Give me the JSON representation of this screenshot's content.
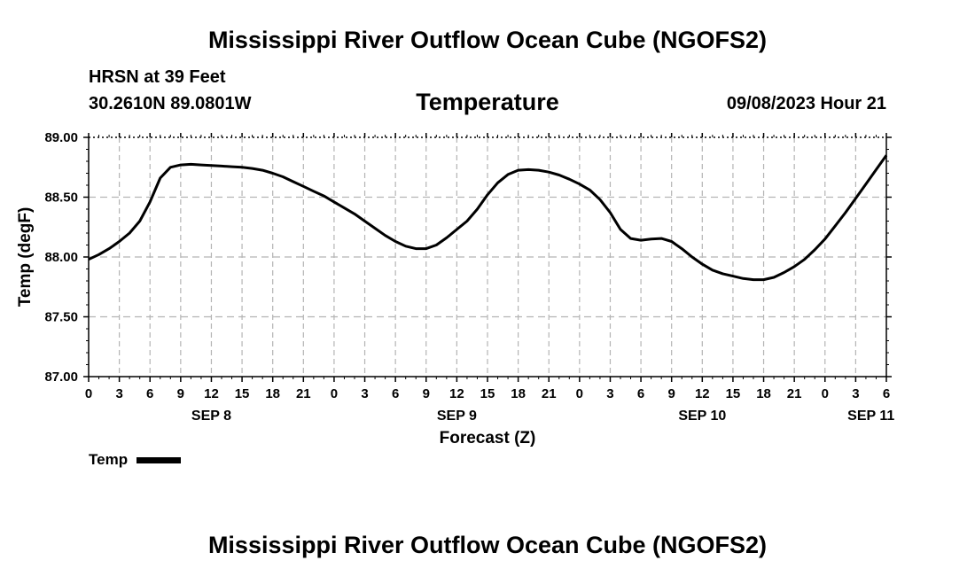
{
  "header": {
    "main_title": "Mississippi River Outflow Ocean Cube (NGOFS2)",
    "station": "HRSN at 39 Feet",
    "coords": "30.2610N  89.0801W",
    "chart_title": "Temperature",
    "timestamp": "09/08/2023 Hour 21",
    "footer_title": "Mississippi River Outflow Ocean Cube (NGOFS2)"
  },
  "chart_data": {
    "type": "line",
    "title": "Temperature",
    "xlabel": "Forecast (Z)",
    "ylabel": "Temp (degF)",
    "xlim": [
      0,
      78
    ],
    "ylim": [
      87.0,
      89.0
    ],
    "yticks": [
      "87.00",
      "87.50",
      "88.00",
      "88.50",
      "89.00"
    ],
    "xticks": [
      "0",
      "3",
      "6",
      "9",
      "12",
      "15",
      "18",
      "21",
      "0",
      "3",
      "6",
      "9",
      "12",
      "15",
      "18",
      "21",
      "0",
      "3",
      "6",
      "9",
      "12",
      "15",
      "18",
      "21",
      "0",
      "3",
      "6"
    ],
    "day_labels": [
      {
        "label": "SEP 8",
        "hour": 12
      },
      {
        "label": "SEP 9",
        "hour": 36
      },
      {
        "label": "SEP 10",
        "hour": 60
      },
      {
        "label": "SEP 11",
        "hour": 76.5
      }
    ],
    "grid": true,
    "series": [
      {
        "name": "Temp",
        "x": [
          0,
          1,
          2,
          3,
          4,
          5,
          6,
          7,
          8,
          9,
          10,
          11,
          12,
          13,
          14,
          15,
          16,
          17,
          18,
          19,
          20,
          21,
          22,
          23,
          24,
          25,
          26,
          27,
          28,
          29,
          30,
          31,
          32,
          33,
          34,
          35,
          36,
          37,
          38,
          39,
          40,
          41,
          42,
          43,
          44,
          45,
          46,
          47,
          48,
          49,
          50,
          51,
          52,
          53,
          54,
          55,
          56,
          57,
          58,
          59,
          60,
          61,
          62,
          63,
          64,
          65,
          66,
          67,
          68,
          69,
          70,
          71,
          72,
          73,
          74,
          75,
          76,
          77,
          78
        ],
        "values": [
          87.98,
          88.02,
          88.07,
          88.13,
          88.2,
          88.3,
          88.46,
          88.66,
          88.75,
          88.77,
          88.775,
          88.77,
          88.765,
          88.76,
          88.755,
          88.75,
          88.74,
          88.725,
          88.7,
          88.67,
          88.63,
          88.59,
          88.55,
          88.51,
          88.46,
          88.41,
          88.36,
          88.3,
          88.24,
          88.18,
          88.13,
          88.09,
          88.07,
          88.07,
          88.1,
          88.16,
          88.23,
          88.3,
          88.4,
          88.52,
          88.62,
          88.69,
          88.725,
          88.73,
          88.725,
          88.71,
          88.685,
          88.65,
          88.61,
          88.56,
          88.48,
          88.37,
          88.23,
          88.155,
          88.14,
          88.15,
          88.155,
          88.13,
          88.07,
          88.0,
          87.94,
          87.89,
          87.86,
          87.84,
          87.82,
          87.81,
          87.81,
          87.83,
          87.87,
          87.92,
          87.98,
          88.06,
          88.15,
          88.26,
          88.37,
          88.49,
          88.61,
          88.73,
          88.85
        ]
      }
    ],
    "legend": "bottom-left"
  },
  "legend": {
    "label": "Temp"
  }
}
